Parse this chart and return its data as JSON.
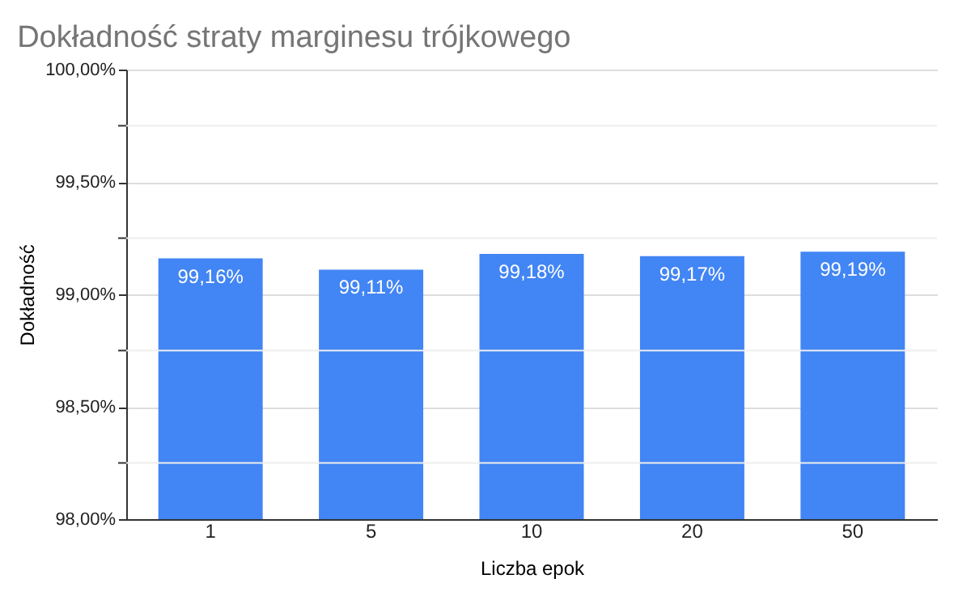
{
  "chart_data": {
    "type": "bar",
    "title": "Dokładność straty marginesu trójkowego",
    "xlabel": "Liczba epok",
    "ylabel": "Dokładność",
    "categories": [
      "1",
      "5",
      "10",
      "20",
      "50"
    ],
    "series": [
      {
        "color": "#4285f4",
        "values": [
          99.16,
          99.11,
          99.18,
          99.17,
          99.19
        ],
        "value_labels": [
          "99,16%",
          "99,11%",
          "99,18%",
          "99,17%",
          "99,19%"
        ]
      }
    ],
    "ylim": [
      98,
      100
    ],
    "yticks": [
      {
        "value": 98,
        "label": "98,00%"
      },
      {
        "value": 98.25,
        "label": null
      },
      {
        "value": 98.5,
        "label": "98,50%"
      },
      {
        "value": 98.75,
        "label": null
      },
      {
        "value": 99,
        "label": "99,00%"
      },
      {
        "value": 99.25,
        "label": null
      },
      {
        "value": 99.5,
        "label": "99,50%"
      },
      {
        "value": 99.75,
        "label": null
      },
      {
        "value": 100,
        "label": "100,00%"
      }
    ],
    "grid": "y"
  }
}
